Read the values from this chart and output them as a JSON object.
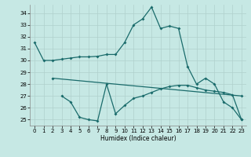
{
  "bg_color": "#c6e8e4",
  "grid_color": "#b0d0cc",
  "line_color": "#1a6b6b",
  "xlabel": "Humidex (Indice chaleur)",
  "xlim": [
    -0.5,
    23.5
  ],
  "ylim": [
    24.5,
    34.7
  ],
  "yticks": [
    25,
    26,
    27,
    28,
    29,
    30,
    31,
    32,
    33,
    34
  ],
  "xticks": [
    0,
    1,
    2,
    3,
    4,
    5,
    6,
    7,
    8,
    9,
    10,
    11,
    12,
    13,
    14,
    15,
    16,
    17,
    18,
    19,
    20,
    21,
    22,
    23
  ],
  "line1_x": [
    0,
    1,
    2,
    3,
    4,
    5,
    6,
    7,
    8,
    9,
    10,
    11,
    12,
    13,
    14,
    15,
    16,
    17,
    18,
    19,
    20,
    21,
    22,
    23
  ],
  "line1_y": [
    31.5,
    30.0,
    30.0,
    30.1,
    30.2,
    30.3,
    30.3,
    30.35,
    30.5,
    30.5,
    31.5,
    33.0,
    33.5,
    34.5,
    32.7,
    32.9,
    32.7,
    29.5,
    28.0,
    28.5,
    28.0,
    26.5,
    26.0,
    25.0
  ],
  "line2_x": [
    2,
    23
  ],
  "line2_y": [
    28.5,
    27.0
  ],
  "line3_x": [
    3,
    4,
    5,
    6,
    7,
    8,
    9,
    10,
    11,
    12,
    13,
    14,
    15,
    16,
    17,
    18,
    19,
    20,
    21,
    22,
    23
  ],
  "line3_y": [
    27.0,
    26.5,
    25.2,
    25.0,
    24.9,
    28.0,
    25.5,
    26.2,
    26.8,
    27.0,
    27.3,
    27.6,
    27.8,
    27.9,
    27.9,
    27.7,
    27.5,
    27.4,
    27.3,
    27.1,
    25.0
  ]
}
